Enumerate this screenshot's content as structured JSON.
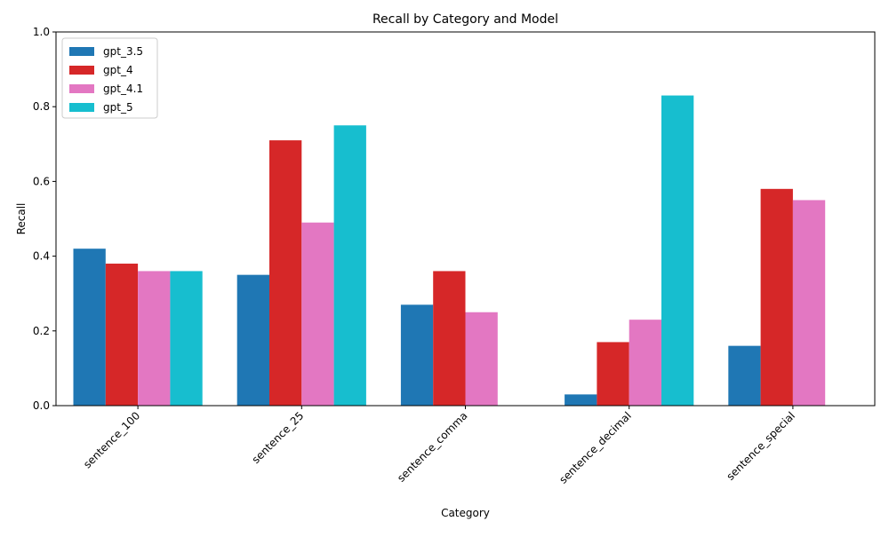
{
  "chart_data": {
    "type": "bar",
    "title": "Recall by Category and Model",
    "xlabel": "Category",
    "ylabel": "Recall",
    "ylim": [
      0,
      1.0
    ],
    "yticks": [
      "0.0",
      "0.2",
      "0.4",
      "0.6",
      "0.8",
      "1.0"
    ],
    "yticks_values": [
      0,
      0.2,
      0.4,
      0.6,
      0.8,
      1.0
    ],
    "grid": false,
    "legend_position": "top-left",
    "categories": [
      "sentence_100",
      "sentence_25",
      "sentence_comma",
      "sentence_decimal",
      "sentence_special"
    ],
    "series": [
      {
        "name": "gpt_3.5",
        "color": "#1f77b4",
        "values": [
          0.42,
          0.35,
          0.27,
          0.03,
          0.16
        ]
      },
      {
        "name": "gpt_4",
        "color": "#d62728",
        "values": [
          0.38,
          0.71,
          0.36,
          0.17,
          0.58
        ]
      },
      {
        "name": "gpt_4.1",
        "color": "#e377c2",
        "values": [
          0.36,
          0.49,
          0.25,
          0.23,
          0.55
        ]
      },
      {
        "name": "gpt_5",
        "color": "#17becf",
        "values": [
          0.36,
          0.75,
          0.0,
          0.83,
          0.0
        ]
      }
    ]
  }
}
